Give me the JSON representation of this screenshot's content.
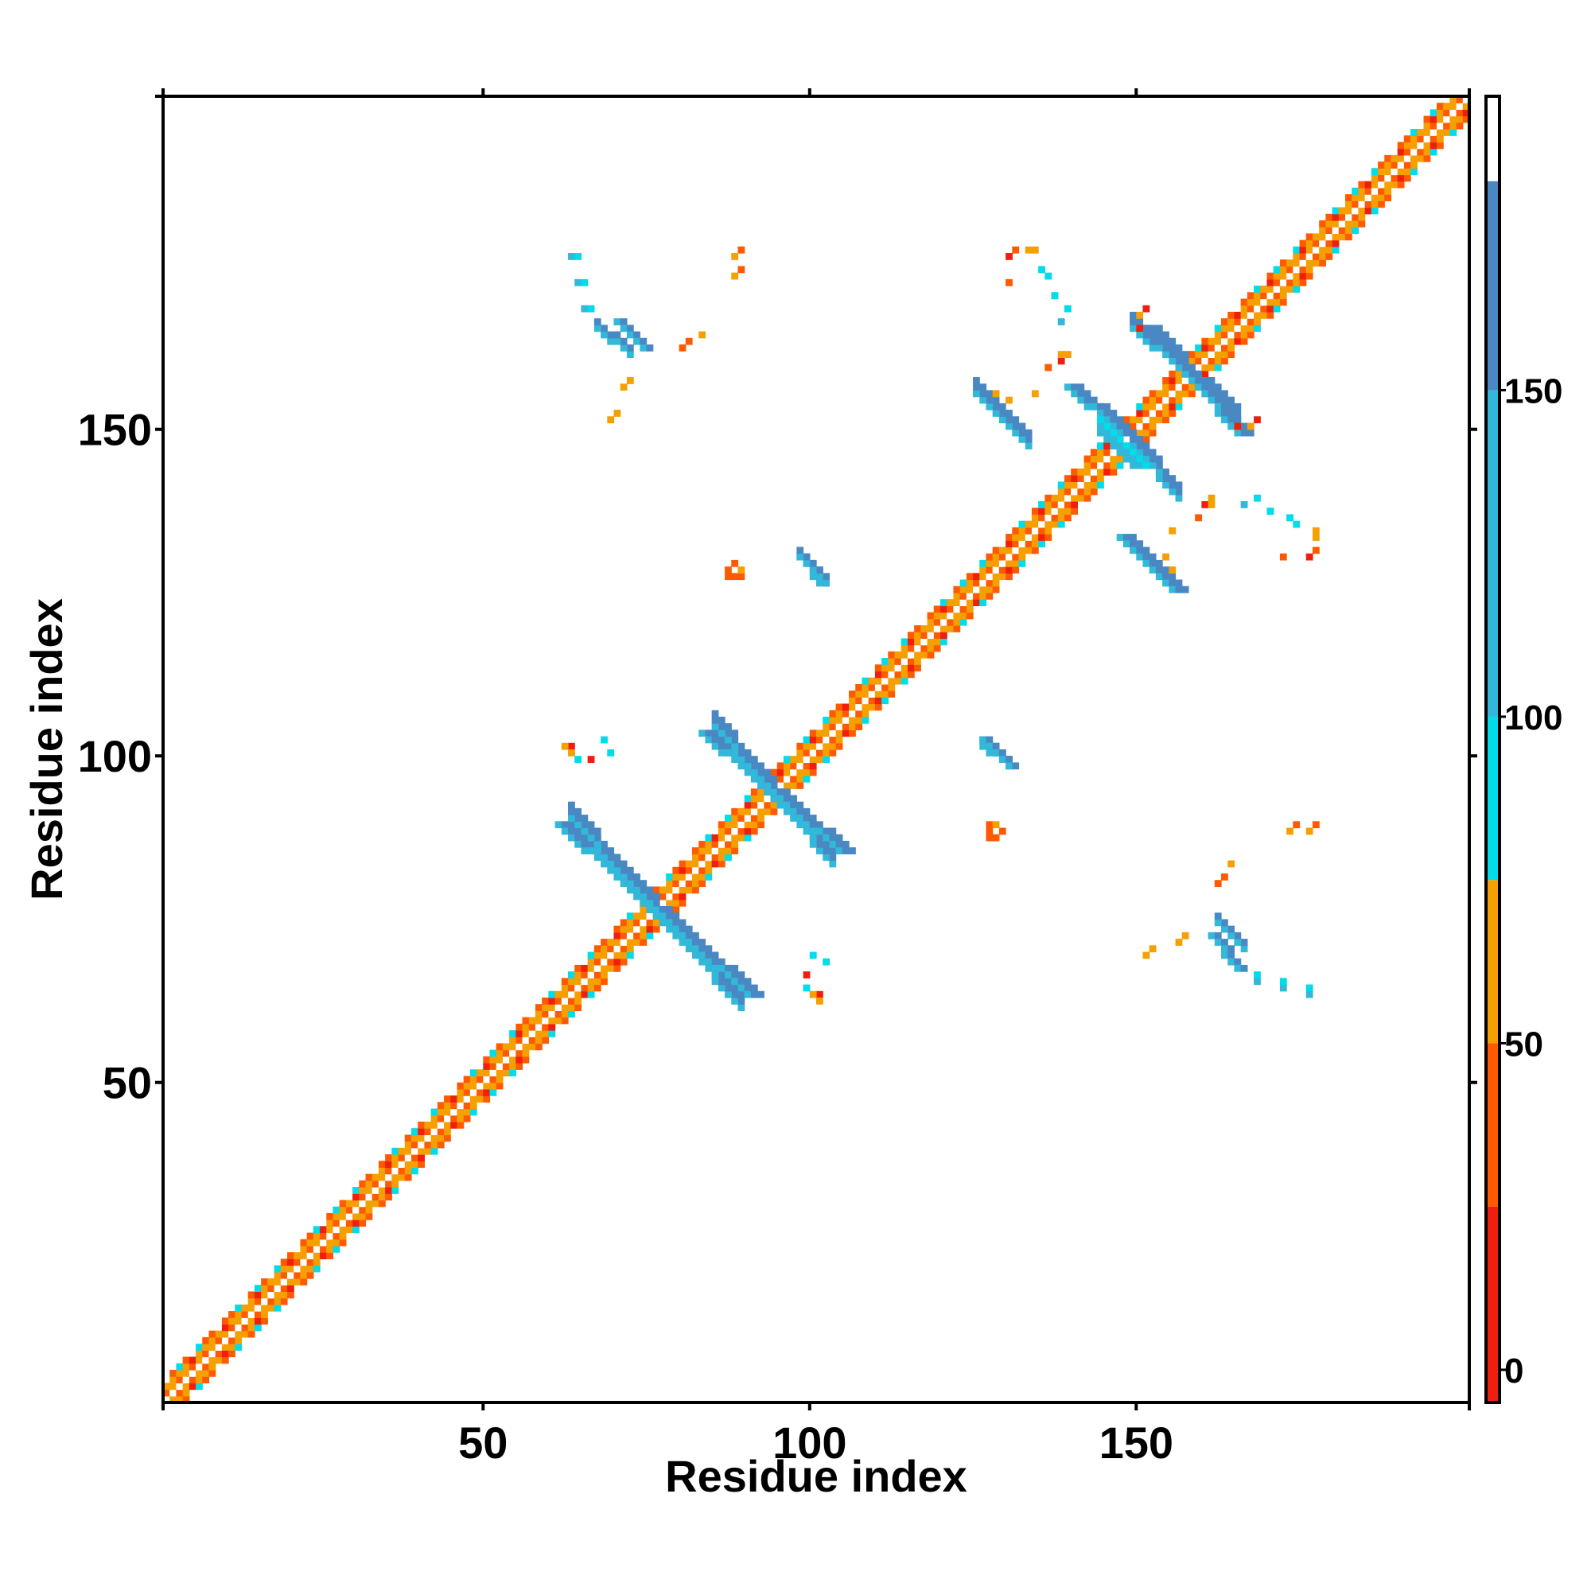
{
  "chart_data": {
    "type": "heatmap",
    "title": "",
    "xlabel": "Residue index",
    "ylabel": "Residue index",
    "xlim": [
      1,
      201
    ],
    "ylim": [
      1,
      201
    ],
    "xticks": [
      50,
      100,
      150
    ],
    "yticks": [
      50,
      100,
      150
    ],
    "grid": false,
    "colorbar": {
      "ticks": [
        0,
        50,
        100,
        150
      ],
      "range": [
        -5,
        195
      ],
      "bands": [
        {
          "from": -5,
          "to": 25,
          "color": "#f01e0f"
        },
        {
          "from": 25,
          "to": 50,
          "color": "#ff5a00"
        },
        {
          "from": 50,
          "to": 75,
          "color": "#f5a000"
        },
        {
          "from": 75,
          "to": 100,
          "color": "#00dcea"
        },
        {
          "from": 100,
          "to": 150,
          "color": "#32b8d8"
        },
        {
          "from": 150,
          "to": 182,
          "color": "#4a88c4"
        },
        {
          "from": 182,
          "to": 195,
          "color": "#ffffff"
        }
      ]
    },
    "diagonal_band": {
      "from": 1,
      "to": 201,
      "description_values": [
        10,
        40,
        65,
        90
      ]
    },
    "segments": [
      {
        "x1": 61,
        "y1": 89,
        "x2": 90,
        "y2": 63,
        "value": 155,
        "width": 3
      },
      {
        "x1": 83,
        "y1": 103,
        "x2": 104,
        "y2": 85,
        "value": 150,
        "width": 3
      },
      {
        "x1": 147,
        "y1": 133,
        "x2": 155,
        "y2": 125,
        "value": 155,
        "width": 3
      },
      {
        "x1": 151,
        "y1": 165,
        "x2": 165,
        "y2": 149,
        "value": 155,
        "width": 3
      },
      {
        "x1": 139,
        "y1": 156,
        "x2": 147,
        "y2": 149,
        "value": 155,
        "width": 3
      },
      {
        "x1": 70,
        "y1": 166,
        "x2": 74,
        "y2": 162,
        "value": 155,
        "width": 2
      },
      {
        "x1": 98,
        "y1": 130,
        "x2": 101,
        "y2": 126,
        "value": 155,
        "width": 2
      },
      {
        "x1": 126,
        "y1": 102,
        "x2": 130,
        "y2": 98,
        "value": 155,
        "width": 2
      },
      {
        "x1": 161,
        "y1": 72,
        "x2": 165,
        "y2": 67,
        "value": 155,
        "width": 2
      },
      {
        "x1": 144,
        "y1": 149,
        "x2": 150,
        "y2": 144,
        "value": 90,
        "width": 2
      }
    ],
    "points": [
      {
        "x": 63,
        "y": 176,
        "value": 110
      },
      {
        "x": 64,
        "y": 172,
        "value": 110
      },
      {
        "x": 65,
        "y": 168,
        "value": 110
      },
      {
        "x": 88,
        "y": 176,
        "value": 60
      },
      {
        "x": 88,
        "y": 173,
        "value": 60
      },
      {
        "x": 83,
        "y": 164,
        "value": 60
      },
      {
        "x": 70,
        "y": 152,
        "value": 60
      },
      {
        "x": 69,
        "y": 151,
        "value": 60
      },
      {
        "x": 88,
        "y": 129,
        "value": 40
      },
      {
        "x": 87,
        "y": 128,
        "value": 40
      },
      {
        "x": 87,
        "y": 127,
        "value": 40
      },
      {
        "x": 63,
        "y": 101,
        "value": 5
      },
      {
        "x": 62,
        "y": 101,
        "value": 55
      },
      {
        "x": 68,
        "y": 102,
        "value": 90
      },
      {
        "x": 63,
        "y": 100,
        "value": 55
      },
      {
        "x": 100,
        "y": 69,
        "value": 90
      },
      {
        "x": 99,
        "y": 66,
        "value": 5
      },
      {
        "x": 99,
        "y": 64,
        "value": 90
      },
      {
        "x": 127,
        "y": 89,
        "value": 40
      },
      {
        "x": 128,
        "y": 89,
        "value": 55
      },
      {
        "x": 127,
        "y": 88,
        "value": 40
      },
      {
        "x": 156,
        "y": 71,
        "value": 55
      },
      {
        "x": 157,
        "y": 72,
        "value": 55
      },
      {
        "x": 163,
        "y": 81,
        "value": 40
      },
      {
        "x": 162,
        "y": 80,
        "value": 40
      },
      {
        "x": 174,
        "y": 89,
        "value": 40
      },
      {
        "x": 177,
        "y": 89,
        "value": 40
      },
      {
        "x": 168,
        "y": 66,
        "value": 90
      },
      {
        "x": 172,
        "y": 65,
        "value": 90
      },
      {
        "x": 176,
        "y": 64,
        "value": 90
      },
      {
        "x": 131,
        "y": 177,
        "value": 40
      },
      {
        "x": 134,
        "y": 177,
        "value": 55
      },
      {
        "x": 135,
        "y": 174,
        "value": 90
      },
      {
        "x": 137,
        "y": 170,
        "value": 90
      },
      {
        "x": 139,
        "y": 168,
        "value": 90
      },
      {
        "x": 138,
        "y": 160,
        "value": 5
      },
      {
        "x": 139,
        "y": 161,
        "value": 55
      },
      {
        "x": 134,
        "y": 155,
        "value": 55
      },
      {
        "x": 151,
        "y": 168,
        "value": 5
      },
      {
        "x": 150,
        "y": 165,
        "value": 55
      },
      {
        "x": 165,
        "y": 150,
        "value": 5
      },
      {
        "x": 167,
        "y": 150,
        "value": 55
      },
      {
        "x": 161,
        "y": 138,
        "value": 55
      },
      {
        "x": 159,
        "y": 136,
        "value": 40
      },
      {
        "x": 166,
        "y": 138,
        "value": 110
      },
      {
        "x": 170,
        "y": 137,
        "value": 90
      },
      {
        "x": 173,
        "y": 136,
        "value": 90
      },
      {
        "x": 177,
        "y": 133,
        "value": 55
      },
      {
        "x": 176,
        "y": 130,
        "value": 5
      },
      {
        "x": 172,
        "y": 130,
        "value": 40
      },
      {
        "x": 154,
        "y": 130,
        "value": 55
      },
      {
        "x": 155,
        "y": 128,
        "value": 55
      }
    ]
  }
}
